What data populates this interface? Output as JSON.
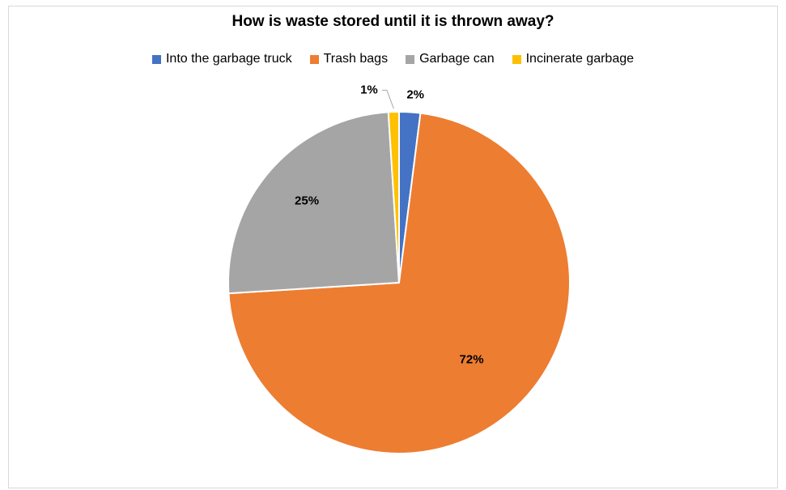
{
  "chart_data": {
    "type": "pie",
    "title": "How is waste stored until it is thrown away?",
    "legend_position": "top",
    "categories": [
      "Into the garbage truck",
      "Trash bags",
      "Garbage can",
      "Incinerate garbage"
    ],
    "values": [
      2,
      72,
      25,
      1
    ],
    "data_labels": [
      "2%",
      "72%",
      "25%",
      "1%"
    ],
    "colors": [
      "#4472c4",
      "#ed7d31",
      "#a5a5a5",
      "#ffc000"
    ]
  }
}
